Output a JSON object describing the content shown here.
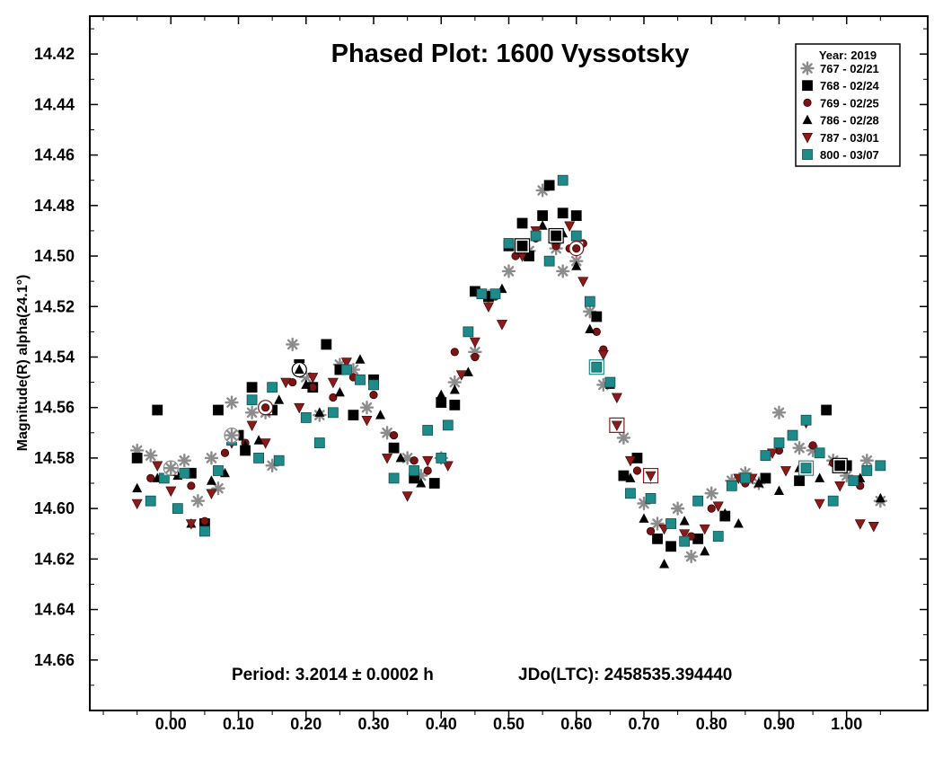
{
  "chart_data": {
    "type": "scatter",
    "title": "Phased Plot: 1600 Vyssotsky",
    "ylabel": "Magnitude(R) alpha(24.1°)",
    "xlabel": "",
    "xlim": [
      -0.12,
      1.12
    ],
    "ylim": [
      14.68,
      14.405
    ],
    "y_inverted": true,
    "x_ticks": [
      0.0,
      0.1,
      0.2,
      0.3,
      0.4,
      0.5,
      0.6,
      0.7,
      0.8,
      0.9,
      1.0
    ],
    "x_tick_labels": [
      "0.00",
      "0.10",
      "0.20",
      "0.30",
      "0.40",
      "0.50",
      "0.60",
      "0.70",
      "0.80",
      "0.90",
      "1.00"
    ],
    "y_ticks": [
      14.42,
      14.44,
      14.46,
      14.48,
      14.5,
      14.52,
      14.54,
      14.56,
      14.58,
      14.6,
      14.62,
      14.64,
      14.66
    ],
    "y_tick_labels": [
      "14.42",
      "14.44",
      "14.46",
      "14.48",
      "14.50",
      "14.52",
      "14.54",
      "14.56",
      "14.58",
      "14.60",
      "14.62",
      "14.64",
      "14.66"
    ],
    "grid": false,
    "legend": {
      "title": "Year: 2019",
      "placement": "top-right"
    },
    "annotation": {
      "period": "Period: 3.2014 ± 0.0002 h",
      "epoch": "JDo(LTC): 2458535.394440"
    },
    "series": [
      {
        "name": "767 - 02/21",
        "marker": "asterisk",
        "color": "#8c8c8c",
        "x": [
          -0.05,
          -0.03,
          0.0,
          0.02,
          0.04,
          0.06,
          0.07,
          0.09,
          0.12,
          0.14,
          0.15,
          0.18,
          0.2,
          0.22,
          0.25,
          0.27,
          0.29,
          0.32,
          0.35,
          0.37,
          0.4,
          0.42,
          0.45,
          0.47,
          0.5,
          0.53,
          0.55,
          0.57,
          0.58,
          0.6,
          0.62,
          0.64,
          0.67,
          0.7,
          0.72,
          0.75,
          0.77,
          0.8,
          0.83,
          0.85,
          0.87,
          0.9,
          0.93,
          0.95,
          0.98,
          1.0,
          1.03,
          1.05
        ],
        "y": [
          14.577,
          14.579,
          14.584,
          14.581,
          14.597,
          14.58,
          14.592,
          14.558,
          14.562,
          14.562,
          14.583,
          14.535,
          14.548,
          14.563,
          14.543,
          14.545,
          14.56,
          14.57,
          14.58,
          14.587,
          14.58,
          14.55,
          14.538,
          14.516,
          14.506,
          14.498,
          14.474,
          14.497,
          14.506,
          14.502,
          14.522,
          14.551,
          14.572,
          14.598,
          14.606,
          14.6,
          14.619,
          14.594,
          14.589,
          14.586,
          14.59,
          14.562,
          14.576,
          14.577,
          14.581,
          14.587,
          14.581,
          14.597
        ]
      },
      {
        "name": "768 - 02/24",
        "marker": "square",
        "color": "#000000",
        "x": [
          -0.05,
          -0.02,
          0.0,
          0.03,
          0.05,
          0.07,
          0.1,
          0.11,
          0.12,
          0.15,
          0.19,
          0.21,
          0.23,
          0.25,
          0.27,
          0.3,
          0.33,
          0.36,
          0.39,
          0.4,
          0.42,
          0.45,
          0.47,
          0.5,
          0.52,
          0.53,
          0.55,
          0.56,
          0.58,
          0.6,
          0.63,
          0.67,
          0.69,
          0.72,
          0.74,
          0.78,
          0.82,
          0.88,
          0.93,
          0.97,
          1.0
        ],
        "y": [
          14.58,
          14.561,
          14.585,
          14.586,
          14.606,
          14.561,
          14.571,
          14.577,
          14.552,
          14.561,
          14.543,
          14.552,
          14.535,
          14.545,
          14.563,
          14.549,
          14.576,
          14.588,
          14.59,
          14.558,
          14.559,
          14.514,
          14.516,
          14.496,
          14.487,
          14.5,
          14.484,
          14.472,
          14.483,
          14.484,
          14.524,
          14.587,
          14.58,
          14.612,
          14.615,
          14.612,
          14.603,
          14.588,
          14.589,
          14.561,
          14.583
        ]
      },
      {
        "name": "769 - 02/25",
        "marker": "circle",
        "color": "#7a1414",
        "x": [
          -0.03,
          0.0,
          0.03,
          0.05,
          0.08,
          0.11,
          0.14,
          0.18,
          0.21,
          0.24,
          0.27,
          0.3,
          0.33,
          0.36,
          0.38,
          0.42,
          0.45,
          0.48,
          0.51,
          0.54,
          0.57,
          0.59,
          0.61,
          0.63,
          0.64,
          0.66,
          0.69,
          0.71,
          0.74,
          0.77,
          0.8,
          0.85,
          0.9,
          0.95,
          0.98,
          1.02
        ],
        "y": [
          14.588,
          14.584,
          14.591,
          14.605,
          14.578,
          14.574,
          14.561,
          14.55,
          14.552,
          14.556,
          14.548,
          14.555,
          14.571,
          14.581,
          14.585,
          14.538,
          14.54,
          14.516,
          14.5,
          14.493,
          14.496,
          14.497,
          14.495,
          14.53,
          14.537,
          14.567,
          14.585,
          14.609,
          14.606,
          14.611,
          14.6,
          14.59,
          14.577,
          14.575,
          14.582,
          14.591
        ]
      },
      {
        "name": "786 - 02/28",
        "marker": "triangle-up",
        "color": "#000000",
        "x": [
          -0.05,
          -0.02,
          0.01,
          0.03,
          0.06,
          0.08,
          0.11,
          0.13,
          0.16,
          0.2,
          0.22,
          0.25,
          0.28,
          0.31,
          0.34,
          0.37,
          0.4,
          0.42,
          0.44,
          0.46,
          0.49,
          0.52,
          0.55,
          0.58,
          0.6,
          0.62,
          0.65,
          0.68,
          0.7,
          0.73,
          0.76,
          0.79,
          0.82,
          0.84,
          0.87,
          0.9,
          0.93,
          0.96,
          0.99,
          1.02,
          1.05
        ],
        "y": [
          14.592,
          14.588,
          14.587,
          14.606,
          14.589,
          14.586,
          14.575,
          14.573,
          14.557,
          14.551,
          14.562,
          14.554,
          14.541,
          14.563,
          14.58,
          14.59,
          14.555,
          14.553,
          14.546,
          14.515,
          14.513,
          14.496,
          14.488,
          14.491,
          14.504,
          14.529,
          14.551,
          14.588,
          14.604,
          14.622,
          14.605,
          14.617,
          14.602,
          14.606,
          14.59,
          14.593,
          14.584,
          14.588,
          14.583,
          14.588,
          14.596
        ]
      },
      {
        "name": "787 - 03/01",
        "marker": "triangle-down",
        "color": "#8b1a1a",
        "x": [
          -0.05,
          -0.02,
          0.0,
          0.03,
          0.06,
          0.09,
          0.12,
          0.14,
          0.17,
          0.19,
          0.21,
          0.24,
          0.26,
          0.29,
          0.32,
          0.35,
          0.38,
          0.41,
          0.43,
          0.45,
          0.47,
          0.49,
          0.52,
          0.54,
          0.57,
          0.59,
          0.61,
          0.64,
          0.66,
          0.68,
          0.71,
          0.73,
          0.76,
          0.79,
          0.81,
          0.84,
          0.86,
          0.89,
          0.91,
          0.94,
          0.96,
          0.99,
          1.02,
          1.04
        ],
        "y": [
          14.598,
          14.583,
          14.593,
          14.606,
          14.594,
          14.574,
          14.567,
          14.574,
          14.55,
          14.56,
          14.548,
          14.55,
          14.542,
          14.565,
          14.58,
          14.595,
          14.581,
          14.583,
          14.547,
          14.534,
          14.52,
          14.527,
          14.5,
          14.49,
          14.494,
          14.488,
          14.51,
          14.539,
          14.556,
          14.581,
          14.588,
          14.608,
          14.61,
          14.608,
          14.599,
          14.588,
          14.588,
          14.578,
          14.585,
          14.566,
          14.598,
          14.591,
          14.606,
          14.607
        ]
      },
      {
        "name": "800 - 03/07",
        "marker": "square",
        "color": "#1f8a8a",
        "x": [
          -0.03,
          -0.01,
          0.01,
          0.02,
          0.05,
          0.07,
          0.09,
          0.12,
          0.13,
          0.15,
          0.16,
          0.2,
          0.22,
          0.24,
          0.26,
          0.28,
          0.3,
          0.33,
          0.36,
          0.38,
          0.4,
          0.41,
          0.44,
          0.46,
          0.48,
          0.5,
          0.52,
          0.54,
          0.56,
          0.58,
          0.6,
          0.62,
          0.65,
          0.66,
          0.68,
          0.71,
          0.74,
          0.76,
          0.78,
          0.81,
          0.83,
          0.85,
          0.88,
          0.9,
          0.92,
          0.94,
          0.96,
          0.98,
          1.01,
          1.03,
          1.05
        ],
        "y": [
          14.597,
          14.588,
          14.6,
          14.586,
          14.609,
          14.585,
          14.573,
          14.557,
          14.58,
          14.552,
          14.581,
          14.564,
          14.574,
          14.562,
          14.545,
          14.549,
          14.551,
          14.588,
          14.585,
          14.569,
          14.58,
          14.567,
          14.53,
          14.515,
          14.515,
          14.495,
          14.496,
          14.492,
          14.502,
          14.47,
          14.492,
          14.518,
          14.55,
          14.567,
          14.594,
          14.596,
          14.606,
          14.613,
          14.597,
          14.611,
          14.591,
          14.588,
          14.579,
          14.574,
          14.571,
          14.565,
          14.578,
          14.597,
          14.589,
          14.585,
          14.583
        ]
      }
    ],
    "highlighted_points": [
      {
        "series": "767 - 02/21",
        "x": 0.0,
        "y": 14.584
      },
      {
        "series": "767 - 02/21",
        "x": 0.09,
        "y": 14.571
      },
      {
        "series": "769 - 02/25",
        "x": 0.14,
        "y": 14.56
      },
      {
        "series": "786 - 02/28",
        "x": 0.19,
        "y": 14.545
      },
      {
        "series": "768 - 02/24",
        "x": 0.52,
        "y": 14.496
      },
      {
        "series": "768 - 02/24",
        "x": 0.57,
        "y": 14.492
      },
      {
        "series": "769 - 02/25",
        "x": 0.6,
        "y": 14.497
      },
      {
        "series": "800 - 03/07",
        "x": 0.63,
        "y": 14.544
      },
      {
        "series": "787 - 03/01",
        "x": 0.66,
        "y": 14.567
      },
      {
        "series": "787 - 03/01",
        "x": 0.71,
        "y": 14.587
      },
      {
        "series": "800 - 03/07",
        "x": 0.94,
        "y": 14.584
      },
      {
        "series": "768 - 02/24",
        "x": 0.99,
        "y": 14.583
      }
    ]
  }
}
